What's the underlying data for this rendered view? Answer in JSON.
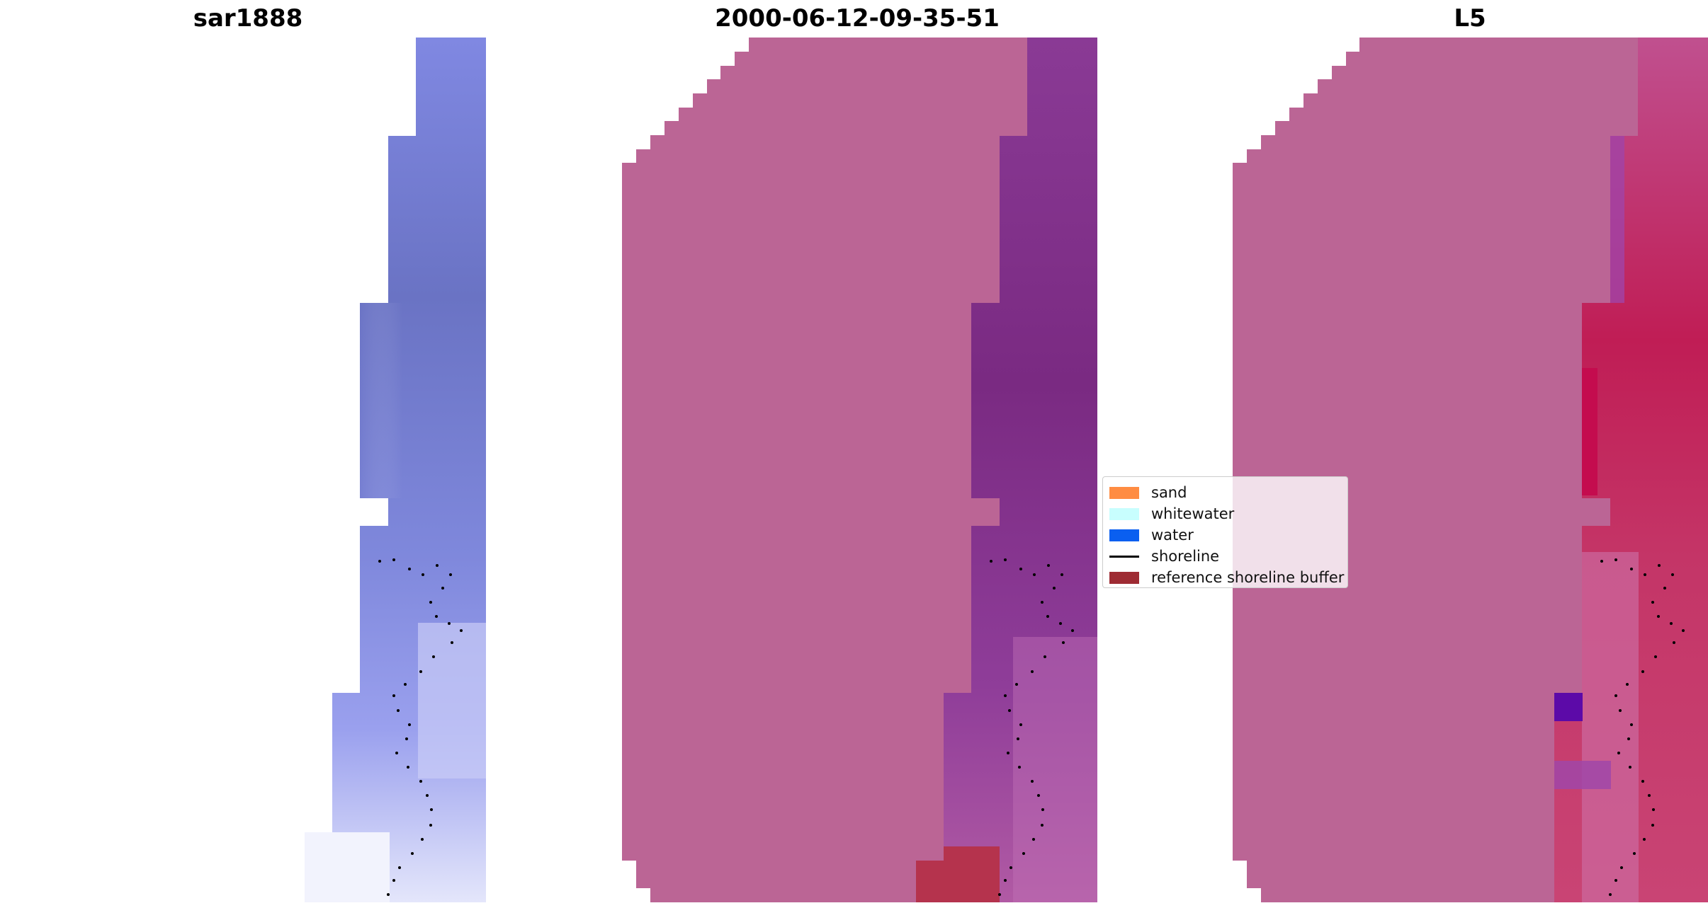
{
  "panels": [
    {
      "title": "sar1888"
    },
    {
      "title": "2000-06-12-09-35-51"
    },
    {
      "title": "L5"
    }
  ],
  "legend": {
    "items": [
      {
        "label": "sand",
        "color": "#ff8c42",
        "kind": "patch"
      },
      {
        "label": "whitewater",
        "color": "#c8fefe",
        "kind": "patch"
      },
      {
        "label": "water",
        "color": "#0a5ff0",
        "kind": "patch"
      },
      {
        "label": "shoreline",
        "color": "#000000",
        "kind": "line"
      },
      {
        "label": "reference shoreline buffer",
        "color": "#9e2b33",
        "kind": "patch"
      }
    ]
  },
  "colors": {
    "land_mask": "#bb6595",
    "sar_blue": "#7f87e0",
    "index_purple": "#7e2d84",
    "classifier_red": "#c4114d",
    "buffer_red": "#b5334d"
  }
}
